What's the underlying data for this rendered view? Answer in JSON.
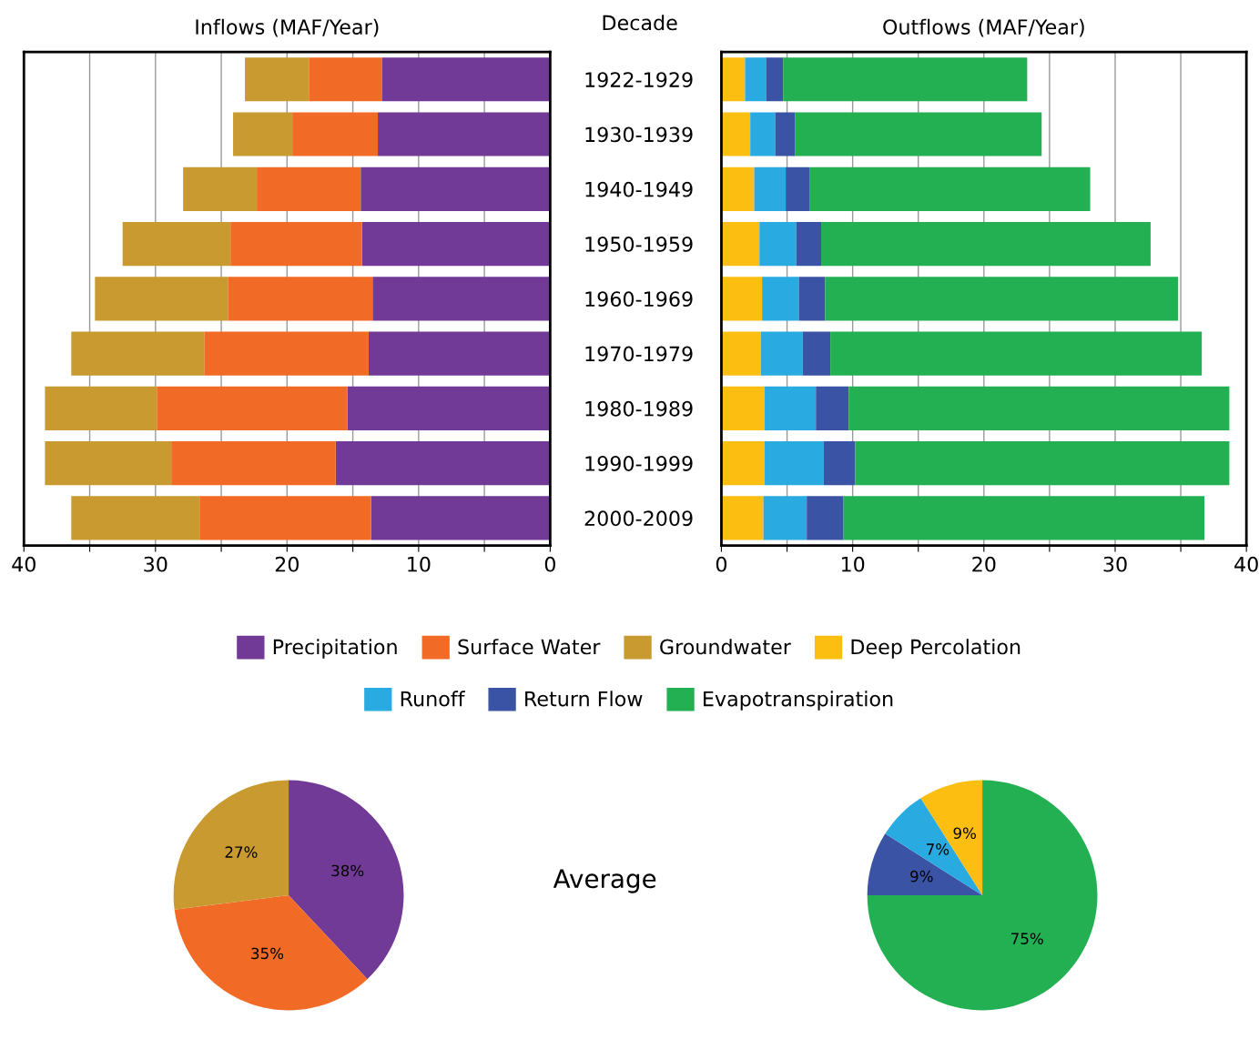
{
  "chart_data": [
    {
      "type": "bar",
      "orientation": "horizontal",
      "stacked": true,
      "title": "Inflows (MAF/Year)",
      "annotations": [
        "Decade"
      ],
      "categories": [
        "1922-1929",
        "1930-1939",
        "1940-1949",
        "1950-1959",
        "1960-1969",
        "1970-1979",
        "1980-1989",
        "1990-1999",
        "2000-2009"
      ],
      "series": [
        {
          "name": "Precipitation",
          "color": "#713a96",
          "values": [
            12.8,
            13.1,
            14.4,
            14.3,
            13.5,
            13.8,
            15.4,
            16.3,
            13.6
          ]
        },
        {
          "name": "Surface Water",
          "color": "#f26b26",
          "values": [
            5.5,
            6.5,
            7.9,
            10.0,
            11.0,
            12.5,
            14.5,
            12.5,
            13.0
          ]
        },
        {
          "name": "Groundwater",
          "color": "#c89a2f",
          "values": [
            4.9,
            4.5,
            5.6,
            8.2,
            10.1,
            10.1,
            8.5,
            9.6,
            9.8
          ]
        }
      ],
      "xlim": [
        40,
        0
      ],
      "xticks": [
        0,
        {
          "value": 5,
          "label": null
        },
        10,
        {
          "value": 15,
          "label": null
        },
        20,
        {
          "value": 25,
          "label": null
        },
        30,
        {
          "value": 35,
          "label": null
        },
        40
      ],
      "grid": "x",
      "legend": "bottom"
    },
    {
      "type": "bar",
      "orientation": "horizontal",
      "stacked": true,
      "title": "Outflows (MAF/Year)",
      "categories": [
        null,
        null,
        null,
        null,
        null,
        null,
        null,
        null,
        null
      ],
      "series": [
        {
          "name": "Deep Percolation",
          "color": "#fdbe12",
          "values": [
            1.8,
            2.2,
            2.5,
            2.9,
            3.1,
            3.0,
            3.3,
            3.3,
            3.2
          ]
        },
        {
          "name": "Runoff",
          "color": "#29abe2",
          "values": [
            1.6,
            1.9,
            2.4,
            2.8,
            2.8,
            3.2,
            3.9,
            4.5,
            3.3
          ]
        },
        {
          "name": "Return Flow",
          "color": "#3a53a4",
          "values": [
            1.3,
            1.5,
            1.8,
            1.9,
            2.0,
            2.1,
            2.5,
            2.4,
            2.8
          ]
        },
        {
          "name": "Evapotranspiration",
          "color": "#22b052",
          "values": [
            18.6,
            18.8,
            21.4,
            25.1,
            26.9,
            28.3,
            29.0,
            28.5,
            27.5
          ]
        }
      ],
      "xlim": [
        0,
        40
      ],
      "xticks": [
        0,
        {
          "value": 5,
          "label": null
        },
        10,
        {
          "value": 15,
          "label": null
        },
        20,
        {
          "value": 25,
          "label": null
        },
        30,
        {
          "value": 35,
          "label": null
        },
        40
      ],
      "grid": "x",
      "legend": "bottom",
      "tick_labels": "x"
    },
    {
      "type": "pie",
      "annotations": [
        "Average"
      ],
      "categories": [
        null,
        null,
        null
      ],
      "values": [
        38,
        35,
        27
      ],
      "value_labels": [
        "38%",
        "35%",
        "27%"
      ],
      "colors": [
        "#713a96",
        "#f26b26",
        "#c89a2f"
      ]
    },
    {
      "type": "pie",
      "categories": [
        null,
        null,
        null,
        null
      ],
      "values": [
        75,
        9,
        7,
        9
      ],
      "value_labels": [
        "75%",
        "9%",
        "7%",
        "9%"
      ],
      "colors": [
        "#22b052",
        "#3a53a4",
        "#29abe2",
        "#fdbe12"
      ]
    }
  ]
}
